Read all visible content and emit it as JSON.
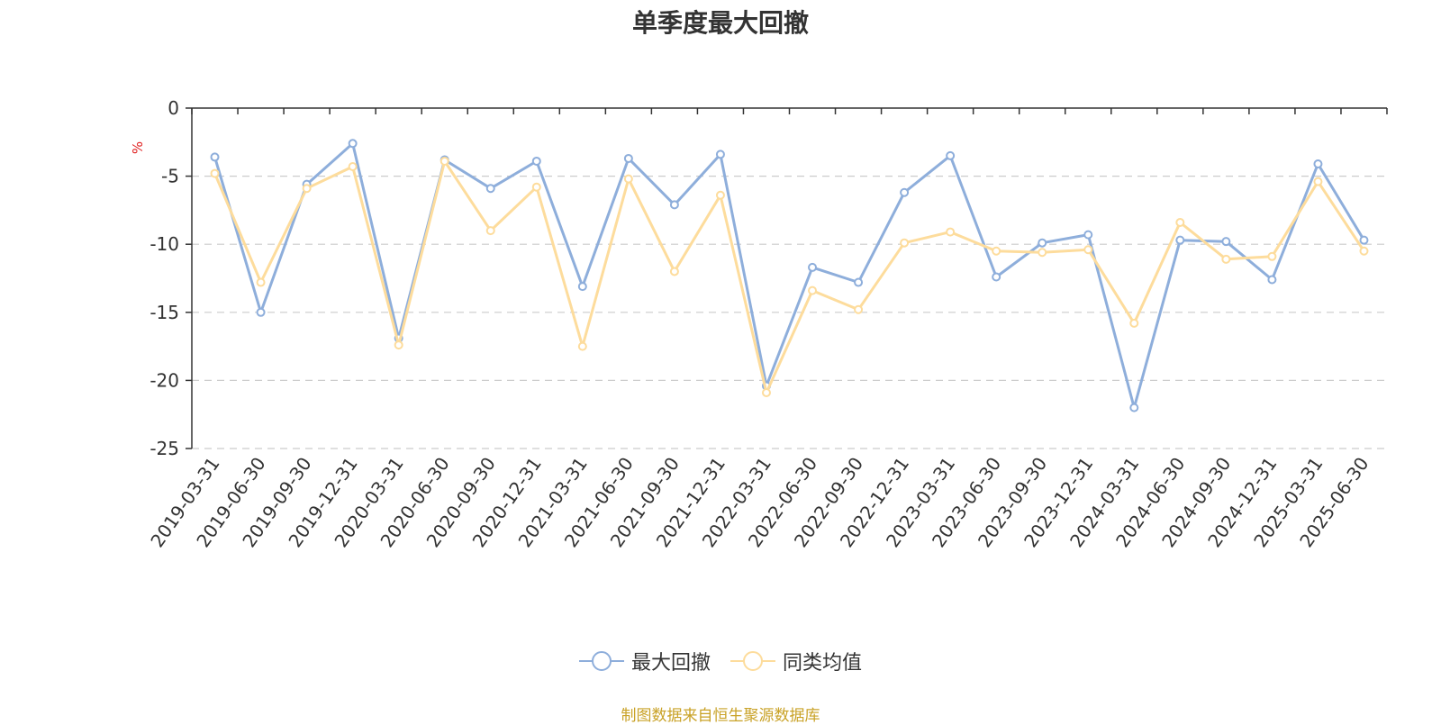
{
  "chart_data": {
    "type": "line",
    "title": "单季度最大回撤",
    "ylabel": "%",
    "ylim": [
      -25,
      0
    ],
    "yticks": [
      0,
      -5,
      -10,
      -15,
      -20,
      -25
    ],
    "grid": true,
    "legend_position": "bottom",
    "categories": [
      "2019-03-31",
      "2019-06-30",
      "2019-09-30",
      "2019-12-31",
      "2020-03-31",
      "2020-06-30",
      "2020-09-30",
      "2020-12-31",
      "2021-03-31",
      "2021-06-30",
      "2021-09-30",
      "2021-12-31",
      "2022-03-31",
      "2022-06-30",
      "2022-09-30",
      "2022-12-31",
      "2023-03-31",
      "2023-06-30",
      "2023-09-30",
      "2023-12-31",
      "2024-03-31",
      "2024-06-30",
      "2024-09-30",
      "2024-12-31",
      "2025-03-31",
      "2025-06-30"
    ],
    "series": [
      {
        "name": "最大回撤",
        "color": "#8eaedb",
        "values": [
          -3.6,
          -15.0,
          -5.6,
          -2.6,
          -16.9,
          -3.8,
          -5.9,
          -3.9,
          -13.1,
          -3.7,
          -7.1,
          -3.4,
          -20.4,
          -11.7,
          -12.8,
          -6.2,
          -3.5,
          -12.4,
          -9.9,
          -9.3,
          -22.0,
          -9.7,
          -9.8,
          -12.6,
          -4.1,
          -9.7
        ]
      },
      {
        "name": "同类均值",
        "color": "#fddc9c",
        "values": [
          -4.8,
          -12.8,
          -5.9,
          -4.3,
          -17.4,
          -3.9,
          -9.0,
          -5.8,
          -17.5,
          -5.2,
          -12.0,
          -6.4,
          -20.9,
          -13.4,
          -14.8,
          -9.9,
          -9.1,
          -10.5,
          -10.6,
          -10.4,
          -15.8,
          -8.4,
          -11.1,
          -10.9,
          -5.4,
          -10.5
        ]
      }
    ]
  },
  "footer": {
    "source": "制图数据来自恒生聚源数据库"
  }
}
